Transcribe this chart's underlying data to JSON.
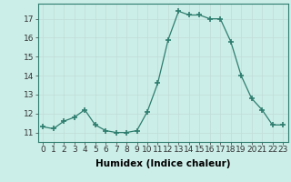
{
  "x": [
    0,
    1,
    2,
    3,
    4,
    5,
    6,
    7,
    8,
    9,
    10,
    11,
    12,
    13,
    14,
    15,
    16,
    17,
    18,
    19,
    20,
    21,
    22,
    23
  ],
  "y": [
    11.3,
    11.2,
    11.6,
    11.8,
    12.2,
    11.4,
    11.1,
    11.0,
    11.0,
    11.1,
    12.1,
    13.6,
    15.9,
    17.4,
    17.2,
    17.2,
    17.0,
    17.0,
    15.8,
    14.0,
    12.8,
    12.2,
    11.4,
    11.4
  ],
  "line_color": "#2e7d6e",
  "marker": "+",
  "marker_size": 4.0,
  "bg_color": "#cceee8",
  "grid_color": "#c0dcd8",
  "xlabel": "Humidex (Indice chaleur)",
  "xlim": [
    -0.5,
    23.5
  ],
  "ylim": [
    10.5,
    17.8
  ],
  "yticks": [
    11,
    12,
    13,
    14,
    15,
    16,
    17
  ],
  "xticks": [
    0,
    1,
    2,
    3,
    4,
    5,
    6,
    7,
    8,
    9,
    10,
    11,
    12,
    13,
    14,
    15,
    16,
    17,
    18,
    19,
    20,
    21,
    22,
    23
  ],
  "xlabel_fontsize": 7.5,
  "tick_fontsize": 6.5
}
